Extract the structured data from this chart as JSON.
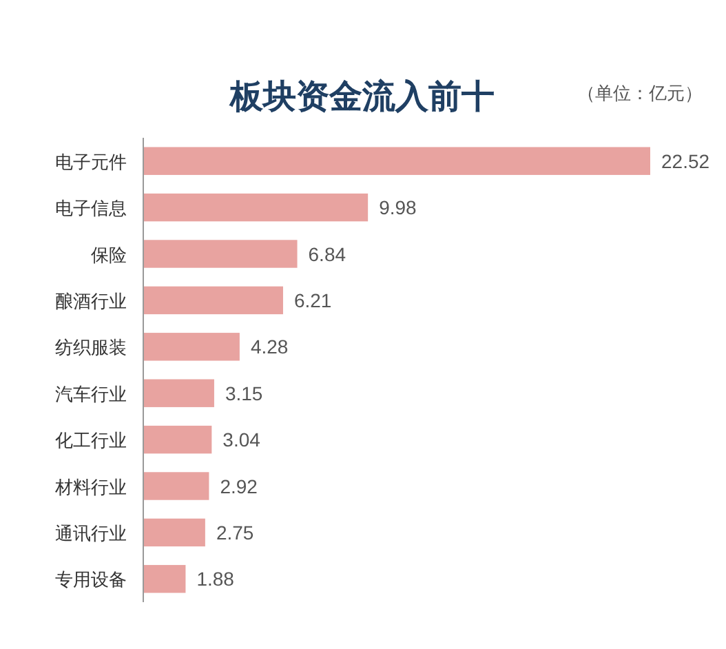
{
  "chart_data": {
    "type": "bar",
    "orientation": "horizontal",
    "title": "板块资金流入前十",
    "subtitle": "（单位：亿元）",
    "categories": [
      "电子元件",
      "电子信息",
      "保险",
      "酿酒行业",
      "纺织服装",
      "汽车行业",
      "化工行业",
      "材料行业",
      "通讯行业",
      "专用设备"
    ],
    "values": [
      22.52,
      9.98,
      6.84,
      6.21,
      4.28,
      3.15,
      3.04,
      2.92,
      2.75,
      1.88
    ],
    "color": "#e8a3a0",
    "data_labels": true
  }
}
